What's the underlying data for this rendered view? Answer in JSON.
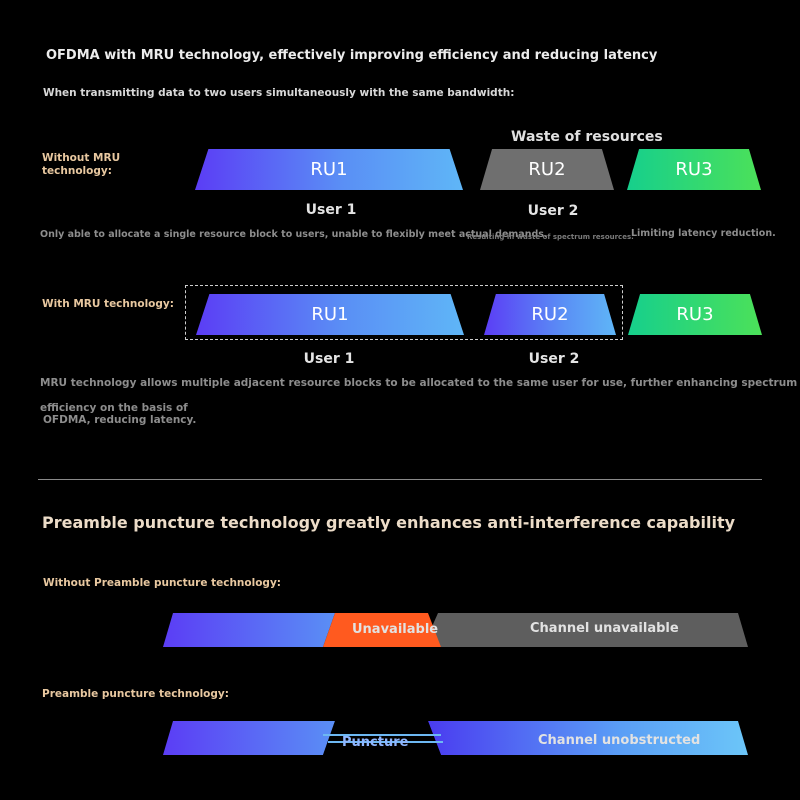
{
  "section1": {
    "title": "OFDMA with MRU technology, effectively improving efficiency and reducing latency",
    "subtitle": "When transmitting data to two users simultaneously with the same bandwidth:",
    "without": {
      "label": "Without MRU technology:",
      "waste_label": "Waste of resources",
      "blocks": [
        "RU1",
        "RU2",
        "RU3"
      ],
      "users": [
        "User 1",
        "User 2"
      ],
      "note1": "Only able to allocate a single resource block to users, unable to flexibly meet actual demands.",
      "note2": "Resulting in waste of spectrum resources.",
      "note3": "Limiting latency reduction."
    },
    "with": {
      "label": "With MRU technology:",
      "blocks": [
        "RU1",
        "RU2",
        "RU3"
      ],
      "users": [
        "User 1",
        "User 2"
      ],
      "note_line1": "MRU technology allows multiple adjacent resource blocks to be allocated to the same user for use, further enhancing spectrum",
      "note_line2": "efficiency on the basis of",
      "note_line3": "OFDMA, reducing latency."
    }
  },
  "section2": {
    "title": "Preamble puncture technology greatly enhances anti-interference capability",
    "without": {
      "label": "Without Preamble puncture technology:",
      "unavailable": "Unavailable",
      "channel": "Channel unavailable"
    },
    "with": {
      "label": "Preamble puncture technology:",
      "puncture": "Puncture",
      "channel": "Channel unobstructed"
    }
  },
  "colors": {
    "background": "#000000",
    "blue_gradient_start": "#5b3df5",
    "blue_gradient_end": "#5fb6f7",
    "gray_block": "#6f6f6f",
    "green_gradient_start": "#16cf8c",
    "green_gradient_end": "#4ce159",
    "orange_unavailable": "#ff5a1f",
    "label_tan": "#e8c8a0"
  }
}
